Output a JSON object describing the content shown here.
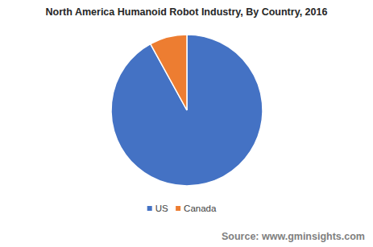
{
  "chart_data": {
    "type": "pie",
    "title": "North America Humanoid Robot Industry, By Country, 2016",
    "categories": [
      "US",
      "Canada"
    ],
    "values": [
      92,
      8
    ],
    "colors": [
      "#4472c4",
      "#ed7d31"
    ],
    "legend": "bottom",
    "source": "Source: www.gminsights.com"
  }
}
